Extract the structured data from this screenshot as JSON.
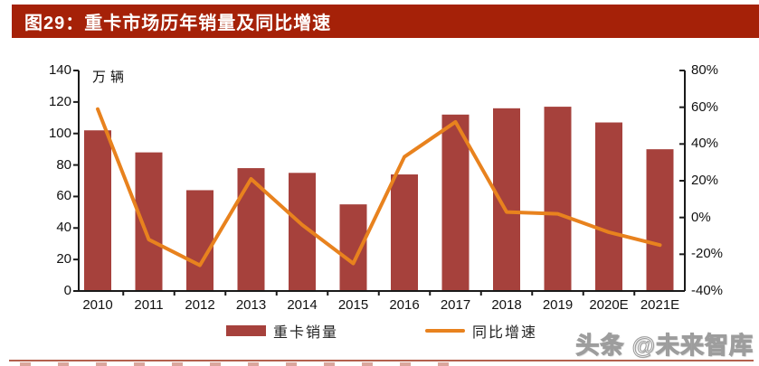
{
  "header": {
    "title": "图29：重卡市场历年销量及同比增速"
  },
  "chart_data": {
    "type": "bar",
    "subtype": "bar-line-combo",
    "title": "重卡市场历年销量及同比增速",
    "categories": [
      "2010",
      "2011",
      "2012",
      "2013",
      "2014",
      "2015",
      "2016",
      "2017",
      "2018",
      "2019",
      "2020E",
      "2021E"
    ],
    "series": [
      {
        "name": "重卡销量",
        "type": "bar",
        "axis": "left",
        "unit": "万辆",
        "values": [
          102,
          88,
          64,
          78,
          75,
          55,
          74,
          112,
          116,
          117,
          107,
          90
        ],
        "color": "#A6413C"
      },
      {
        "name": "同比增速",
        "type": "line",
        "axis": "right",
        "unit": "%",
        "values": [
          59,
          -12,
          -26,
          21,
          -4,
          -25,
          33,
          52,
          3,
          2,
          -8,
          -15
        ],
        "color": "#E8821E"
      }
    ],
    "left_axis": {
      "unit_label": "万辆",
      "min": 0,
      "max": 140,
      "ticks": [
        0,
        20,
        40,
        60,
        80,
        100,
        120,
        140
      ]
    },
    "right_axis": {
      "min": -40,
      "max": 80,
      "ticks": [
        -40,
        -20,
        0,
        20,
        40,
        60,
        80
      ],
      "tick_suffix": "%"
    },
    "legend_position": "bottom",
    "grid": false
  },
  "colors": {
    "title_bar": "#A52108",
    "bar": "#A6413C",
    "line": "#E8821E",
    "axis": "#1a1a1a",
    "bottom_divider": "#B4604E"
  },
  "watermark": "头条 @未来智库"
}
